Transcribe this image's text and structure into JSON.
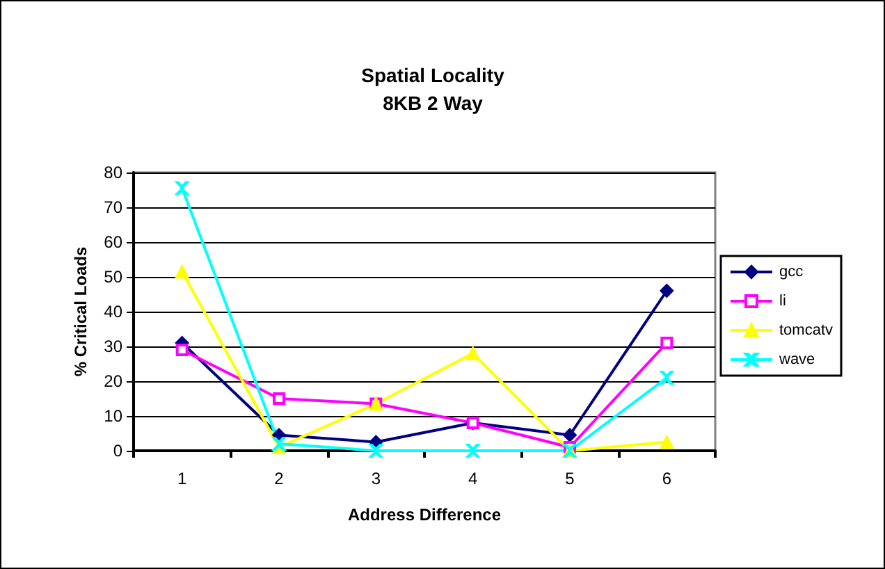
{
  "chart_data": {
    "type": "line",
    "title": "Spatial Locality\n8KB 2 Way",
    "xlabel": "Address Difference",
    "ylabel": "% Critical Loads",
    "categories": [
      "1",
      "2",
      "3",
      "4",
      "5",
      "6"
    ],
    "series": [
      {
        "name": "gcc",
        "color": "#000080",
        "marker": "diamond",
        "values": [
          31,
          4.5,
          2.5,
          8,
          4.5,
          46
        ]
      },
      {
        "name": "li",
        "color": "#ff00ff",
        "marker": "square",
        "values": [
          29,
          15,
          13.5,
          8,
          1,
          31
        ]
      },
      {
        "name": "tomcatv",
        "color": "#ffff00",
        "marker": "triangle",
        "values": [
          51.5,
          1,
          13.5,
          28,
          0,
          2.5
        ]
      },
      {
        "name": "wave",
        "color": "#00ffff",
        "marker": "cross",
        "values": [
          75.5,
          2,
          0,
          0,
          0,
          21
        ]
      }
    ],
    "ylim": [
      0,
      80
    ],
    "yticks": [
      0,
      10,
      20,
      30,
      40,
      50,
      60,
      70,
      80
    ],
    "grid": "y",
    "legend": "right"
  }
}
